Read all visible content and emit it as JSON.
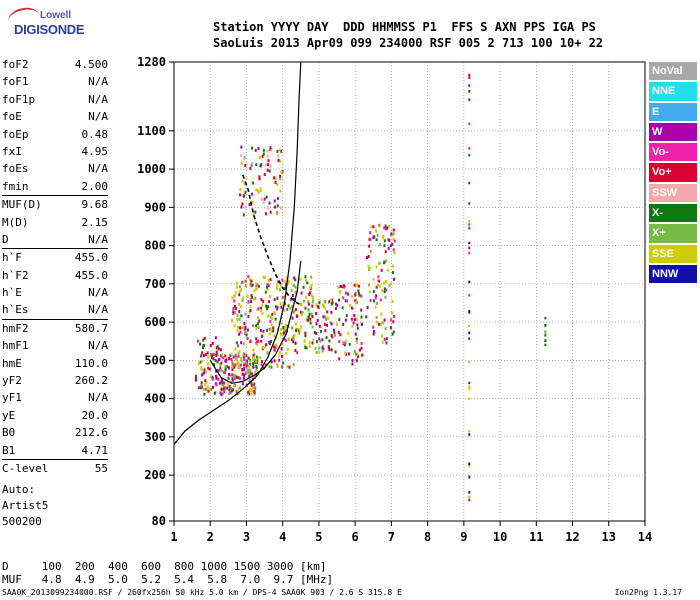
{
  "logo": {
    "line1": "Lowell",
    "line2": "DIGISONDE"
  },
  "header": {
    "line1": "Station YYYY DAY  DDD HHMMSS P1  FFS S AXN PPS IGA PS",
    "line2": "SaoLuis 2013 Apr09 099 234000 RSF 005 2 713 100 10+ 22"
  },
  "params": [
    {
      "k": "foF2",
      "v": "4.500"
    },
    {
      "k": "foF1",
      "v": "N/A"
    },
    {
      "k": "foF1p",
      "v": "N/A"
    },
    {
      "k": "foE",
      "v": "N/A"
    },
    {
      "k": "foEp",
      "v": "0.48"
    },
    {
      "k": "fxI",
      "v": "4.95"
    },
    {
      "k": "foEs",
      "v": "N/A"
    },
    {
      "k": "fmin",
      "v": "2.00"
    },
    {
      "k": "MUF(D)",
      "v": "9.68",
      "sep": true
    },
    {
      "k": "M(D)",
      "v": "2.15"
    },
    {
      "k": "D",
      "v": "N/A"
    },
    {
      "k": "h`F",
      "v": "455.0",
      "sep": true
    },
    {
      "k": "h`F2",
      "v": "455.0"
    },
    {
      "k": "h`E",
      "v": "N/A"
    },
    {
      "k": "h`Es",
      "v": "N/A"
    },
    {
      "k": "hmF2",
      "v": "580.7",
      "sep": true
    },
    {
      "k": "hmF1",
      "v": "N/A"
    },
    {
      "k": "hmE",
      "v": "110.0"
    },
    {
      "k": "yF2",
      "v": "260.2"
    },
    {
      "k": "yF1",
      "v": "N/A"
    },
    {
      "k": "yE",
      "v": "20.0"
    },
    {
      "k": "B0",
      "v": "212.6"
    },
    {
      "k": "B1",
      "v": "4.71"
    },
    {
      "k": "C-level",
      "v": "55",
      "sep": true
    }
  ],
  "auto": {
    "line1": "Auto:",
    "line2": "Artist5",
    "line3": "500200"
  },
  "legend": [
    {
      "label": "NoVal",
      "color": "#a8a8a8"
    },
    {
      "label": "NNE",
      "color": "#22ddee"
    },
    {
      "label": "E",
      "color": "#44aaee"
    },
    {
      "label": "W",
      "color": "#aa00aa"
    },
    {
      "label": "Vo-",
      "color": "#ee22aa"
    },
    {
      "label": "Vo+",
      "color": "#dd0033"
    },
    {
      "label": "SSW",
      "color": "#f4aaaa"
    },
    {
      "label": "X-",
      "color": "#117711"
    },
    {
      "label": "X+",
      "color": "#77bb44"
    },
    {
      "label": "SSE",
      "color": "#cccc00"
    },
    {
      "label": "NNW",
      "color": "#1111aa"
    }
  ],
  "bottom": {
    "line1": "D     100  200  400  600  800 1000 1500 3000 [km]",
    "line2": "MUF   4.8  4.9  5.0  5.2  5.4  5.8  7.0  9.7 [MHz]"
  },
  "footer": "SAA0K_2013099234000.RSF / 260fx256h 50 kHz 5.0 km / DPS-4 SAA0K 903 / 2.6 S 315.8 E",
  "version": "Ion2Png 1.3.17",
  "chart_data": {
    "type": "scatter",
    "title": "",
    "xlabel": "",
    "ylabel": "",
    "xlim": [
      1,
      14
    ],
    "ylim": [
      80,
      1280
    ],
    "xticks": [
      1,
      2,
      3,
      4,
      5,
      6,
      7,
      8,
      9,
      10,
      11,
      12,
      13,
      14
    ],
    "yticks": [
      80,
      200,
      300,
      400,
      500,
      600,
      700,
      800,
      900,
      1000,
      1100,
      1280
    ],
    "grid": true,
    "legend_position": "right",
    "clusters": [
      {
        "x": [
          1.6,
          2.3
        ],
        "y": [
          410,
          560
        ],
        "n": 90,
        "colors": [
          "#ee22aa",
          "#dd0033",
          "#aa00aa",
          "#117711",
          "#cccc00"
        ]
      },
      {
        "x": [
          2.3,
          3.3
        ],
        "y": [
          410,
          520
        ],
        "n": 160,
        "colors": [
          "#ee22aa",
          "#dd0033",
          "#aa00aa",
          "#cccc00",
          "#117711",
          "#77bb44"
        ]
      },
      {
        "x": [
          2.6,
          4.4
        ],
        "y": [
          480,
          720
        ],
        "n": 280,
        "colors": [
          "#cccc00",
          "#cccc00",
          "#cccc00",
          "#77bb44",
          "#117711",
          "#dd0033",
          "#ee22aa",
          "#aa00aa"
        ]
      },
      {
        "x": [
          2.8,
          4.0
        ],
        "y": [
          880,
          1060
        ],
        "n": 90,
        "colors": [
          "#cccc00",
          "#f4aaaa",
          "#dd0033",
          "#aa00aa",
          "#117711"
        ]
      },
      {
        "x": [
          4.3,
          4.9
        ],
        "y": [
          530,
          720
        ],
        "n": 70,
        "colors": [
          "#cccc00",
          "#77bb44",
          "#117711",
          "#dd0033"
        ]
      },
      {
        "x": [
          4.9,
          5.5
        ],
        "y": [
          520,
          660
        ],
        "n": 60,
        "colors": [
          "#cccc00",
          "#77bb44",
          "#117711",
          "#dd0033",
          "#aa00aa"
        ]
      },
      {
        "x": [
          5.5,
          6.2
        ],
        "y": [
          490,
          700
        ],
        "n": 80,
        "colors": [
          "#cccc00",
          "#77bb44",
          "#117711",
          "#dd0033",
          "#ee22aa",
          "#aa00aa"
        ]
      },
      {
        "x": [
          6.3,
          7.1
        ],
        "y": [
          540,
          860
        ],
        "n": 110,
        "colors": [
          "#cccc00",
          "#cccc00",
          "#77bb44",
          "#117711",
          "#dd0033",
          "#ee22aa",
          "#aa00aa"
        ]
      }
    ],
    "vertical_streaks": [
      {
        "x": 9.15,
        "y": [
          120,
          1270
        ],
        "n": 40,
        "colors": [
          "#aa00aa",
          "#dd0033",
          "#cccc00",
          "#1111aa",
          "#117711",
          "#ee22aa"
        ]
      },
      {
        "x": 11.25,
        "y": [
          530,
          650
        ],
        "n": 10,
        "colors": [
          "#77bb44",
          "#117711"
        ]
      }
    ],
    "profile_curve": {
      "x": [
        1.0,
        1.3,
        1.7,
        2.1,
        2.5,
        2.9,
        3.3,
        3.6,
        3.85,
        4.05,
        4.2,
        4.32,
        4.4,
        4.45,
        4.5
      ],
      "y": [
        280,
        315,
        345,
        370,
        395,
        425,
        460,
        510,
        570,
        650,
        760,
        900,
        1050,
        1180,
        1280
      ]
    },
    "trace_curve": {
      "x": [
        2.0,
        2.3,
        2.6,
        2.9,
        3.2,
        3.5,
        3.8,
        4.1,
        4.4,
        4.5
      ],
      "y": [
        500,
        455,
        440,
        445,
        460,
        480,
        515,
        570,
        680,
        760
      ]
    },
    "dashed_curve": {
      "x": [
        2.9,
        3.05,
        3.2,
        3.4,
        3.6,
        3.8,
        4.0,
        4.2,
        4.4,
        4.5
      ],
      "y": [
        985,
        945,
        880,
        820,
        770,
        725,
        690,
        665,
        650,
        645
      ]
    }
  }
}
